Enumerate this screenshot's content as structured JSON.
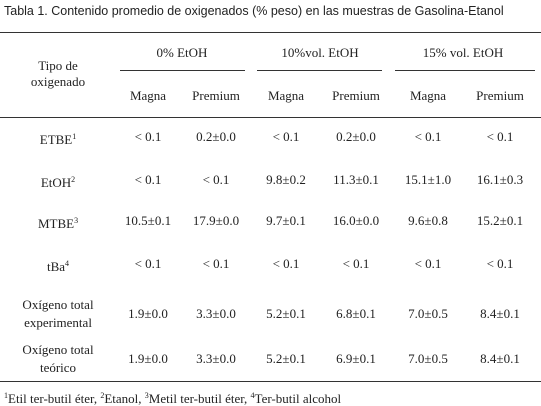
{
  "title": "Tabla 1. Contenido promedio de oxigenados (% peso) en las muestras de Gasolina-Etanol",
  "table": {
    "stub_header": [
      "Tipo de",
      "oxigenado"
    ],
    "groups": [
      "0% EtOH",
      "10%vol. EtOH",
      "15% vol. EtOH"
    ],
    "subheaders": [
      "Magna",
      "Premium",
      "Magna",
      "Premium",
      "Magna",
      "Premium"
    ],
    "rows": [
      {
        "label": [
          "ETBE"
        ],
        "note": "1",
        "cells": [
          "< 0.1",
          "0.2±0.0",
          "< 0.1",
          "0.2±0.0",
          "< 0.1",
          "< 0.1"
        ]
      },
      {
        "label": [
          "EtOH"
        ],
        "note": "2",
        "cells": [
          "< 0.1",
          "< 0.1",
          "9.8±0.2",
          "11.3±0.1",
          "15.1±1.0",
          "16.1±0.3"
        ]
      },
      {
        "label": [
          "MTBE"
        ],
        "note": "3",
        "cells": [
          "10.5±0.1",
          "17.9±0.0",
          "9.7±0.1",
          "16.0±0.0",
          "9.6±0.8",
          "15.2±0.1"
        ]
      },
      {
        "label": [
          "tBa"
        ],
        "note": "4",
        "cells": [
          "< 0.1",
          "< 0.1",
          "< 0.1",
          "< 0.1",
          "< 0.1",
          "< 0.1"
        ]
      },
      {
        "label": [
          "Oxígeno total",
          "experimental"
        ],
        "cells": [
          "1.9±0.0",
          "3.3±0.0",
          "5.2±0.1",
          "6.8±0.1",
          "7.0±0.5",
          "8.4±0.1"
        ]
      },
      {
        "label": [
          "Oxígeno total",
          "teórico"
        ],
        "cells": [
          "1.9±0.0",
          "3.3±0.0",
          "5.2±0.1",
          "6.9±0.1",
          "7.0±0.5",
          "8.4±0.1"
        ]
      }
    ]
  },
  "footnote": [
    {
      "mark": "1",
      "text": "Etil ter-butil éter,"
    },
    {
      "mark": "2",
      "text": "Etanol,"
    },
    {
      "mark": "3",
      "text": "Metil ter-butil éter,"
    },
    {
      "mark": "4",
      "text": "Ter-butil alcohol"
    }
  ]
}
